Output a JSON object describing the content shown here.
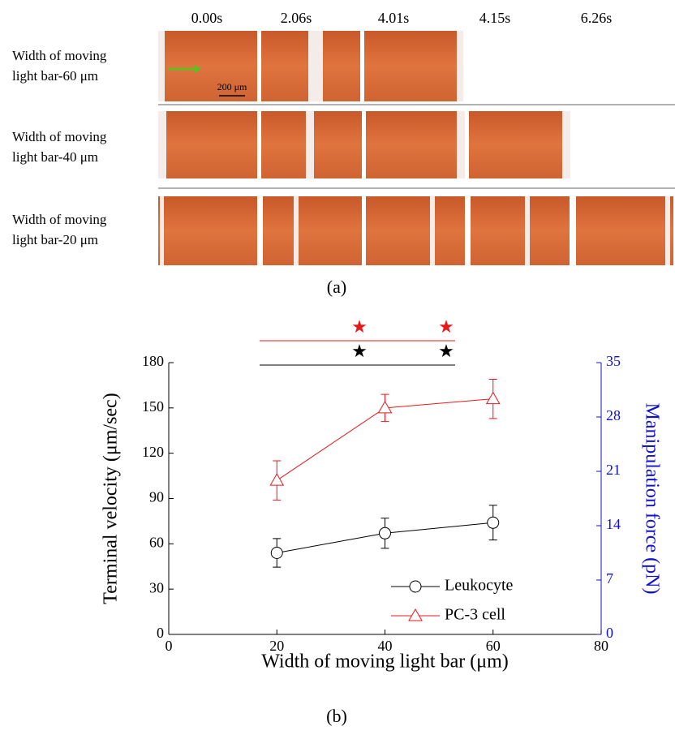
{
  "panel_a": {
    "times": [
      "0.00s",
      "2.06s",
      "4.01s",
      "4.15s",
      "6.26s"
    ],
    "rows": [
      {
        "lines": [
          "Width of moving",
          "light bar-60 μm"
        ]
      },
      {
        "lines": [
          "Width of moving",
          "light bar-40 μm"
        ]
      },
      {
        "lines": [
          "Width of moving",
          "light bar-20 μm"
        ]
      }
    ],
    "scale_bar": "200 μm"
  },
  "captions": [
    "(a)",
    "(b)"
  ],
  "chart_data": {
    "type": "line",
    "x_label": "Width of moving light bar (μm)",
    "y_label": "Terminal velocity (μm/sec)",
    "y2_label": "Manipulation force (pN)",
    "x": [
      20,
      40,
      60
    ],
    "series": [
      {
        "name": "Leukocyte",
        "color": "#000000",
        "marker": "circle",
        "values": [
          54,
          67,
          74
        ],
        "errors": [
          9.5,
          10,
          11.5
        ]
      },
      {
        "name": "PC-3 cell",
        "color": "#e8191c",
        "marker": "triangle",
        "values": [
          102,
          150,
          156
        ],
        "errors": [
          13,
          9,
          13
        ]
      }
    ],
    "xlim": [
      0,
      80
    ],
    "xticks": [
      0,
      20,
      40,
      60,
      80
    ],
    "ylim": [
      0,
      180
    ],
    "yticks": [
      0,
      30,
      60,
      90,
      120,
      150,
      180
    ],
    "y2lim": [
      0,
      35
    ],
    "y2ticks": [
      0,
      7,
      14,
      21,
      28,
      35
    ],
    "y2_color": "#1010d0",
    "legend": "lower right"
  }
}
